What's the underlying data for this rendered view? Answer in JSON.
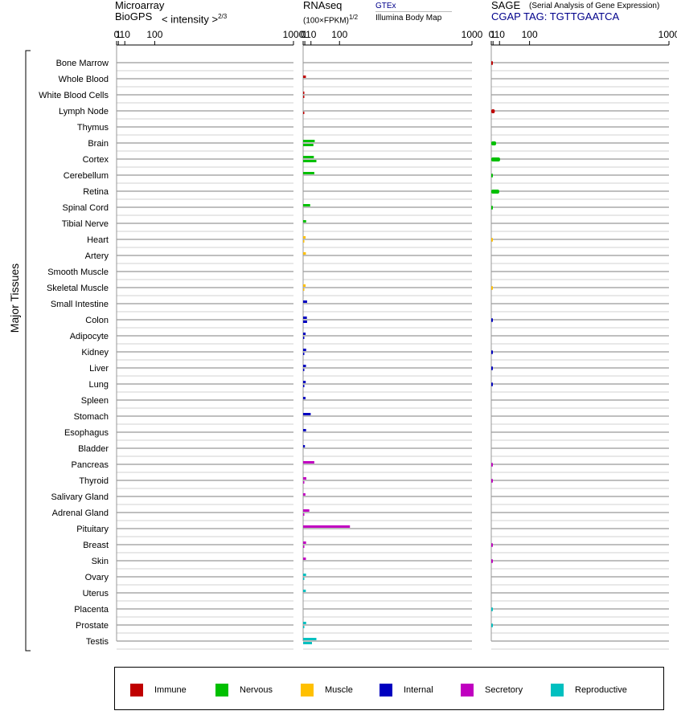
{
  "headers": {
    "microarray_line1": "Microarray",
    "microarray_line2": "BioGPS",
    "microarray_intensity": "< intensity >",
    "microarray_exp": "2/3",
    "rnaseq_line1": "RNAseq",
    "rnaseq_line2": "(100×FPKM)",
    "rnaseq_exp": "1/2",
    "rnaseq_gtex": "GTEx",
    "rnaseq_illumina": "Illumina Body Map",
    "sage_line1": "SAGE",
    "sage_desc": "(Serial Analysis of Gene Expression)",
    "sage_tag": "CGAP TAG: TGTTGAATCA"
  },
  "axis_ticks": [
    "0",
    "1",
    "10",
    "100",
    "1000"
  ],
  "y_group_label": "Major Tissues",
  "colors": {
    "Immune": "#c00000",
    "Nervous": "#00c000",
    "Muscle": "#ffc000",
    "Internal": "#0000c0",
    "Secretory": "#c000c0",
    "Reproductive": "#00c0c0"
  },
  "legend": [
    "Immune",
    "Nervous",
    "Muscle",
    "Internal",
    "Secretory",
    "Reproductive"
  ],
  "chart_data": {
    "type": "bar",
    "orientation": "horizontal",
    "scale": "power",
    "categories": [
      "Bone Marrow",
      "Whole Blood",
      "White Blood Cells",
      "Lymph Node",
      "Thymus",
      "Brain",
      "Cortex",
      "Cerebellum",
      "Retina",
      "Spinal Cord",
      "Tibial Nerve",
      "Heart",
      "Artery",
      "Smooth Muscle",
      "Skeletal Muscle",
      "Small Intestine",
      "Colon",
      "Adipocyte",
      "Kidney",
      "Liver",
      "Lung",
      "Spleen",
      "Stomach",
      "Esophagus",
      "Bladder",
      "Pancreas",
      "Thyroid",
      "Salivary Gland",
      "Adrenal Gland",
      "Pituitary",
      "Breast",
      "Skin",
      "Ovary",
      "Uterus",
      "Placenta",
      "Prostate",
      "Testis"
    ],
    "tissue_class": [
      "Immune",
      "Immune",
      "Immune",
      "Immune",
      "Immune",
      "Nervous",
      "Nervous",
      "Nervous",
      "Nervous",
      "Nervous",
      "Nervous",
      "Muscle",
      "Muscle",
      "Muscle",
      "Muscle",
      "Internal",
      "Internal",
      "Internal",
      "Internal",
      "Internal",
      "Internal",
      "Internal",
      "Internal",
      "Internal",
      "Internal",
      "Secretory",
      "Secretory",
      "Secretory",
      "Secretory",
      "Secretory",
      "Secretory",
      "Secretory",
      "Reproductive",
      "Reproductive",
      "Reproductive",
      "Reproductive",
      "Reproductive"
    ],
    "series": [
      {
        "name": "RNAseq GTEx",
        "values": [
          null,
          2.1,
          0,
          null,
          null,
          18,
          16,
          17,
          null,
          8.5,
          2.4,
          1.8,
          2.1,
          null,
          1.8,
          3.6,
          3.3,
          1.8,
          2.4,
          2.2,
          1.9,
          1.7,
          9.5,
          2.3,
          1.1,
          17,
          2.6,
          1.6,
          7,
          146,
          2.3,
          2.1,
          2.3,
          2,
          null,
          2.4,
          22
        ]
      },
      {
        "name": "RNAseq Illumina Body Map",
        "values": [
          null,
          null,
          0,
          0,
          null,
          15,
          22,
          null,
          null,
          null,
          null,
          0,
          null,
          null,
          0,
          null,
          3.6,
          0,
          0,
          0,
          0,
          null,
          null,
          null,
          null,
          null,
          0,
          null,
          0,
          null,
          0,
          null,
          0,
          null,
          null,
          0,
          12
        ]
      },
      {
        "name": "SAGE",
        "values": [
          0,
          null,
          null,
          2.8,
          null,
          4.5,
          11,
          0,
          9.5,
          0,
          null,
          0,
          null,
          null,
          0,
          null,
          0,
          null,
          0,
          0,
          0,
          null,
          null,
          null,
          null,
          0,
          0,
          null,
          null,
          null,
          0,
          0.8,
          null,
          null,
          0,
          0,
          null
        ]
      }
    ]
  }
}
